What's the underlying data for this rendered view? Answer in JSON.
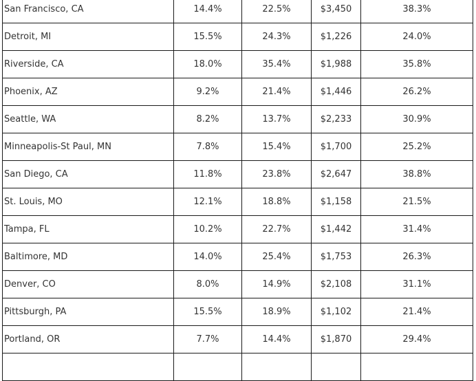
{
  "table": {
    "rows": [
      {
        "city": "San Francisco, CA",
        "col2": "14.4%",
        "col3": "22.5%",
        "col4": "$3,450",
        "col5": "38.3%"
      },
      {
        "city": "Detroit, MI",
        "col2": "15.5%",
        "col3": "24.3%",
        "col4": "$1,226",
        "col5": "24.0%"
      },
      {
        "city": "Riverside, CA",
        "col2": "18.0%",
        "col3": "35.4%",
        "col4": "$1,988",
        "col5": "35.8%"
      },
      {
        "city": "Phoenix, AZ",
        "col2": "9.2%",
        "col3": "21.4%",
        "col4": "$1,446",
        "col5": "26.2%"
      },
      {
        "city": "Seattle, WA",
        "col2": "8.2%",
        "col3": "13.7%",
        "col4": "$2,233",
        "col5": "30.9%"
      },
      {
        "city": "Minneapolis-St Paul, MN",
        "col2": "7.8%",
        "col3": "15.4%",
        "col4": "$1,700",
        "col5": "25.2%"
      },
      {
        "city": "San Diego, CA",
        "col2": "11.8%",
        "col3": "23.8%",
        "col4": "$2,647",
        "col5": "38.8%"
      },
      {
        "city": "St. Louis, MO",
        "col2": "12.1%",
        "col3": "18.8%",
        "col4": "$1,158",
        "col5": "21.5%"
      },
      {
        "city": "Tampa, FL",
        "col2": "10.2%",
        "col3": "22.7%",
        "col4": "$1,442",
        "col5": "31.4%"
      },
      {
        "city": "Baltimore, MD",
        "col2": "14.0%",
        "col3": "25.4%",
        "col4": "$1,753",
        "col5": "26.3%"
      },
      {
        "city": "Denver, CO",
        "col2": "8.0%",
        "col3": "14.9%",
        "col4": "$2,108",
        "col5": "31.1%"
      },
      {
        "city": "Pittsburgh, PA",
        "col2": "15.5%",
        "col3": "18.9%",
        "col4": "$1,102",
        "col5": "21.4%"
      },
      {
        "city": "Portland, OR",
        "col2": "7.7%",
        "col3": "14.4%",
        "col4": "$1,870",
        "col5": "29.4%"
      }
    ]
  }
}
